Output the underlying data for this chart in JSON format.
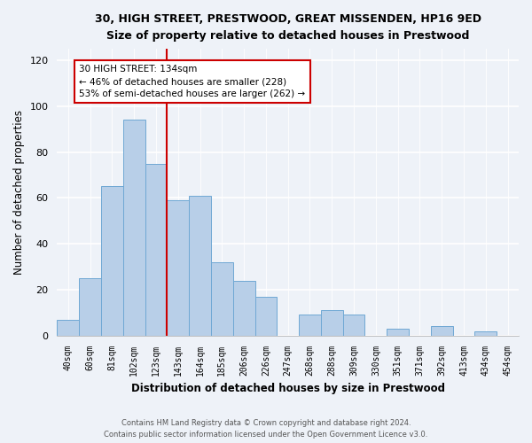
{
  "title_line1": "30, HIGH STREET, PRESTWOOD, GREAT MISSENDEN, HP16 9ED",
  "title_line2": "Size of property relative to detached houses in Prestwood",
  "xlabel": "Distribution of detached houses by size in Prestwood",
  "ylabel": "Number of detached properties",
  "bar_labels": [
    "40sqm",
    "60sqm",
    "81sqm",
    "102sqm",
    "123sqm",
    "143sqm",
    "164sqm",
    "185sqm",
    "206sqm",
    "226sqm",
    "247sqm",
    "268sqm",
    "288sqm",
    "309sqm",
    "330sqm",
    "351sqm",
    "371sqm",
    "392sqm",
    "413sqm",
    "434sqm",
    "454sqm"
  ],
  "bar_values": [
    7,
    25,
    65,
    94,
    75,
    59,
    61,
    32,
    24,
    17,
    0,
    9,
    11,
    9,
    0,
    3,
    0,
    4,
    0,
    2,
    0
  ],
  "bar_color": "#b8cfe8",
  "bar_edge_color": "#6fa8d4",
  "vline_color": "#cc0000",
  "annotation_text": "30 HIGH STREET: 134sqm\n← 46% of detached houses are smaller (228)\n53% of semi-detached houses are larger (262) →",
  "annotation_box_color": "white",
  "annotation_box_edge_color": "#cc0000",
  "ylim": [
    0,
    125
  ],
  "yticks": [
    0,
    20,
    40,
    60,
    80,
    100,
    120
  ],
  "footer_line1": "Contains HM Land Registry data © Crown copyright and database right 2024.",
  "footer_line2": "Contains public sector information licensed under the Open Government Licence v3.0.",
  "bg_color": "#eef2f8",
  "grid_color": "#ffffff",
  "vline_xindex": 5
}
